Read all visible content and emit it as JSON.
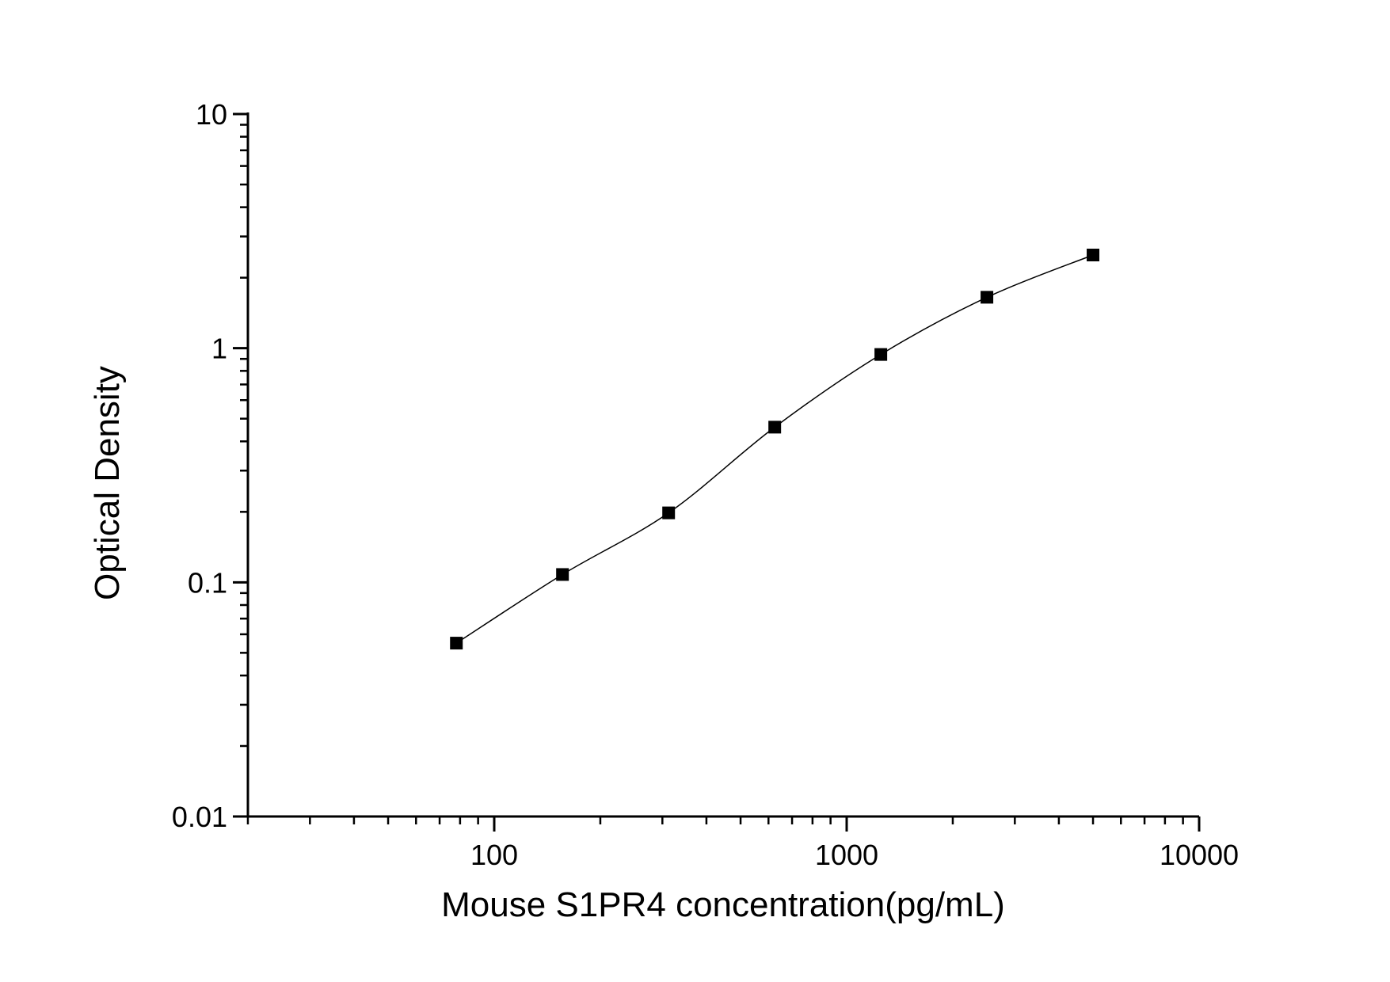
{
  "chart_data": {
    "type": "scatter",
    "title": "",
    "xlabel": "Mouse S1PR4 concentration(pg/mL)",
    "ylabel": "Optical Density",
    "x_scale": "log",
    "y_scale": "log",
    "xlim": [
      20,
      10000
    ],
    "ylim": [
      0.01,
      10
    ],
    "grid": false,
    "legend": false,
    "x_major_ticks": [
      100,
      1000,
      10000
    ],
    "x_tick_labels": [
      "100",
      "1000",
      "10000"
    ],
    "y_major_ticks": [
      10,
      1,
      0.1,
      0.01
    ],
    "y_tick_labels": [
      "10",
      "1",
      "0.1",
      "0.01"
    ],
    "series": [
      {
        "name": "standard-curve",
        "marker": "filled-square",
        "line": "smooth",
        "color": "#000000",
        "x": [
          78.1,
          156.2,
          312.5,
          625,
          1250,
          2500,
          5000
        ],
        "y": [
          0.055,
          0.108,
          0.198,
          0.46,
          0.94,
          1.65,
          2.5
        ]
      }
    ]
  },
  "colors": {
    "background": "#ffffff",
    "axis": "#000000",
    "marker": "#000000",
    "curve": "#000000"
  }
}
